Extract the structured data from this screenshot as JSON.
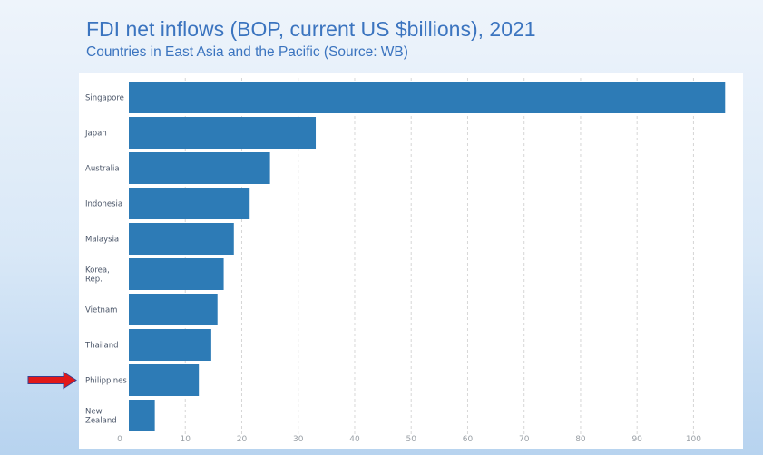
{
  "header": {
    "title": "FDI net inflows (BOP, current US $billions), 2021",
    "subtitle": "Countries in East Asia and the Pacific (Source: WB)"
  },
  "colors": {
    "bar": "#2d7bb6",
    "highlight_arrow": "#e11919"
  },
  "chart_data": {
    "type": "bar",
    "orientation": "horizontal",
    "categories": [
      "Singapore",
      "Japan",
      "Australia",
      "Indonesia",
      "Malaysia",
      "Korea, Rep.",
      "Vietnam",
      "Thailand",
      "Philippines",
      "New Zealand"
    ],
    "category_label_lines": [
      [
        "Singapore"
      ],
      [
        "Japan"
      ],
      [
        "Australia"
      ],
      [
        "Indonesia"
      ],
      [
        "Malaysia"
      ],
      [
        "Korea,",
        "Rep."
      ],
      [
        "Vietnam"
      ],
      [
        "Thailand"
      ],
      [
        "Philippines"
      ],
      [
        "New",
        "Zealand"
      ]
    ],
    "values": [
      105.6,
      33.1,
      25.0,
      21.4,
      18.6,
      16.8,
      15.7,
      14.6,
      12.4,
      4.6
    ],
    "xlim": [
      0,
      107
    ],
    "xticks": [
      "0",
      "10",
      "20",
      "30",
      "40",
      "50",
      "60",
      "70",
      "80",
      "90",
      "100"
    ],
    "grid": true,
    "highlighted_category": "Philippines"
  }
}
